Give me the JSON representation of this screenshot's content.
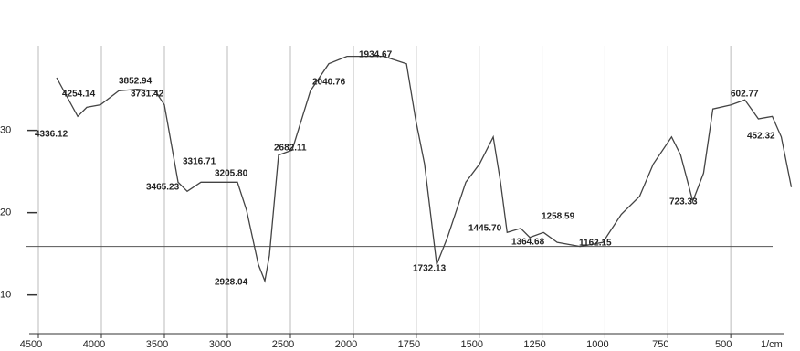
{
  "chart_data": {
    "type": "line",
    "x_label": "1/cm",
    "xlim": [
      4500,
      250
    ],
    "xscale_change_at": 2000,
    "xticks": [
      4500,
      4000,
      3500,
      3000,
      2500,
      2000,
      1750,
      1500,
      1250,
      1000,
      750,
      500
    ],
    "ylim": [
      5.3,
      41.4
    ],
    "yticks": [
      10,
      20,
      30
    ],
    "grid": true,
    "reference_line": 15.9,
    "series": [
      {
        "color": "#444444",
        "x": [
          4355,
          4188,
          4116,
          4007,
          3862,
          3717,
          3573,
          3500,
          3391,
          3319,
          3210,
          2920,
          2848,
          2754,
          2703,
          2667,
          2594,
          2486,
          2341,
          2196,
          2051,
          1880,
          1789,
          1753,
          1717,
          1669,
          1626,
          1553,
          1499,
          1444,
          1415,
          1389,
          1335,
          1299,
          1244,
          1190,
          1099,
          1008,
          935,
          862,
          808,
          735,
          699,
          651,
          608,
          571,
          499,
          444,
          390,
          335,
          299,
          259
        ],
        "values": [
          36.4,
          31.7,
          32.8,
          33.1,
          34.8,
          35.0,
          34.8,
          33.1,
          23.7,
          22.6,
          23.7,
          23.7,
          20.3,
          13.7,
          11.7,
          14.8,
          27.0,
          27.6,
          34.8,
          38.1,
          39.0,
          39.0,
          38.1,
          31.4,
          25.9,
          13.7,
          17.0,
          23.7,
          25.9,
          29.2,
          23.7,
          17.6,
          18.1,
          17.0,
          17.6,
          16.4,
          15.9,
          16.4,
          19.8,
          22.0,
          25.9,
          29.2,
          27.0,
          21.4,
          24.8,
          32.6,
          33.1,
          33.7,
          31.4,
          31.7,
          29.2,
          23.1
        ]
      }
    ],
    "peaks": [
      4336.12,
      4254.14,
      3852.94,
      3731.42,
      3316.71,
      3465.23,
      3205.8,
      2682.11,
      2928.04,
      2040.76,
      1934.67,
      1732.13,
      1445.7,
      1364.68,
      1258.59,
      1162.15,
      723.33,
      602.77,
      452.32
    ],
    "peak_labels": [
      "4336.12",
      "4254.14",
      "3852.94",
      "3731.42",
      "3316.71",
      "3465.23",
      "3205.80",
      "2682.11",
      "2928.04",
      "2040.76",
      "1934.67",
      "1732.13",
      "1445.70",
      "1364.68",
      "1258.59",
      "1162.15",
      "723.33",
      "602.77",
      "452.32"
    ]
  }
}
